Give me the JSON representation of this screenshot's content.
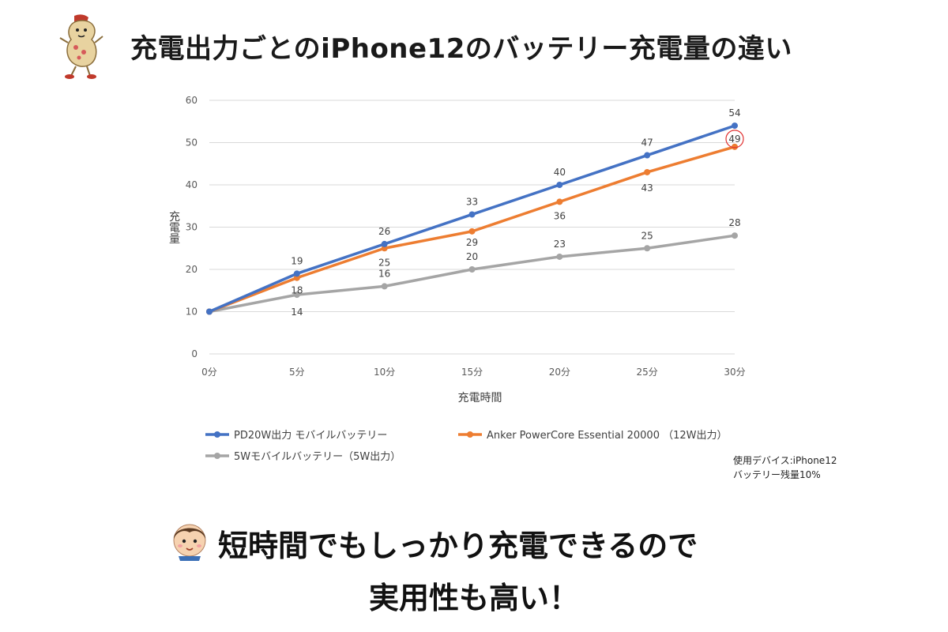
{
  "header": {
    "title": "充電出力ごとのiPhone12のバッテリー充電量の違い",
    "mascot_icon": "peanut-mascot-icon"
  },
  "chart_data": {
    "type": "line",
    "title": "",
    "xlabel": "充電時間",
    "ylabel": "充電量",
    "categories": [
      "0分",
      "5分",
      "10分",
      "15分",
      "20分",
      "25分",
      "30分"
    ],
    "ylim": [
      0,
      60
    ],
    "yticks": [
      0,
      10,
      20,
      30,
      40,
      50,
      60
    ],
    "grid": true,
    "legend_position": "bottom",
    "series": [
      {
        "name": "PD20W出力 モバイルバッテリー",
        "color": "#4472C4",
        "values": [
          10,
          19,
          26,
          33,
          40,
          47,
          54
        ],
        "labels": [
          "",
          "19",
          "26",
          "33",
          "40",
          "47",
          "54"
        ]
      },
      {
        "name": "Anker PowerCore Essential 20000 （12W出力）",
        "color": "#ED7D31",
        "values": [
          10,
          18,
          25,
          29,
          36,
          43,
          49
        ],
        "labels": [
          "",
          "18",
          "25",
          "29",
          "36",
          "43",
          "49"
        ]
      },
      {
        "name": "5Wモバイルバッテリー（5W出力）",
        "color": "#A5A5A5",
        "values": [
          10,
          14,
          16,
          20,
          23,
          25,
          28
        ],
        "labels": [
          "",
          "14",
          "16",
          "20",
          "23",
          "25",
          "28"
        ]
      }
    ],
    "highlight": {
      "series": 1,
      "point": 6,
      "color": "#E03030"
    }
  },
  "note": {
    "line1": "使用デバイス:iPhone12",
    "line2": "バッテリー残量10%"
  },
  "footer": {
    "line1": "短時間でもしっかり充電できるので",
    "line2": "実用性も高い！",
    "avatar_icon": "boy-face-icon"
  }
}
